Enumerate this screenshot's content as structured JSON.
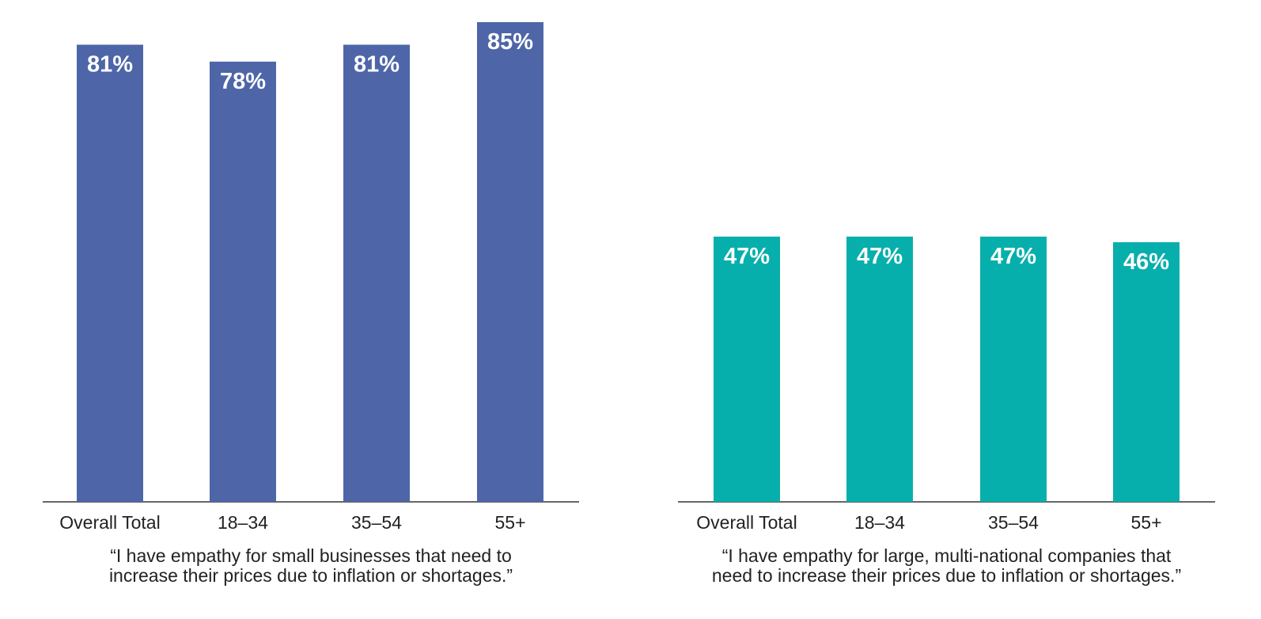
{
  "chart_data": [
    {
      "type": "bar",
      "categories": [
        "Overall Total",
        "18–34",
        "35–54",
        "55+"
      ],
      "values": [
        81,
        78,
        81,
        85
      ],
      "value_labels": [
        "81%",
        "78%",
        "81%",
        "85%"
      ],
      "ylim": [
        0,
        100
      ],
      "color": "#4e66a8",
      "grid": false,
      "caption": {
        "line1": "“I have empathy for small businesses that need to",
        "line2": "increase their prices due to inflation or shortages.”"
      }
    },
    {
      "type": "bar",
      "categories": [
        "Overall Total",
        "18–34",
        "35–54",
        "55+"
      ],
      "values": [
        47,
        47,
        47,
        46
      ],
      "value_labels": [
        "47%",
        "47%",
        "47%",
        "46%"
      ],
      "ylim": [
        0,
        100
      ],
      "color": "#07afac",
      "grid": false,
      "caption": {
        "line1": "“I have empathy for large, multi-national companies that",
        "line2": "need to increase their prices due to inflation or shortages.”"
      }
    }
  ]
}
